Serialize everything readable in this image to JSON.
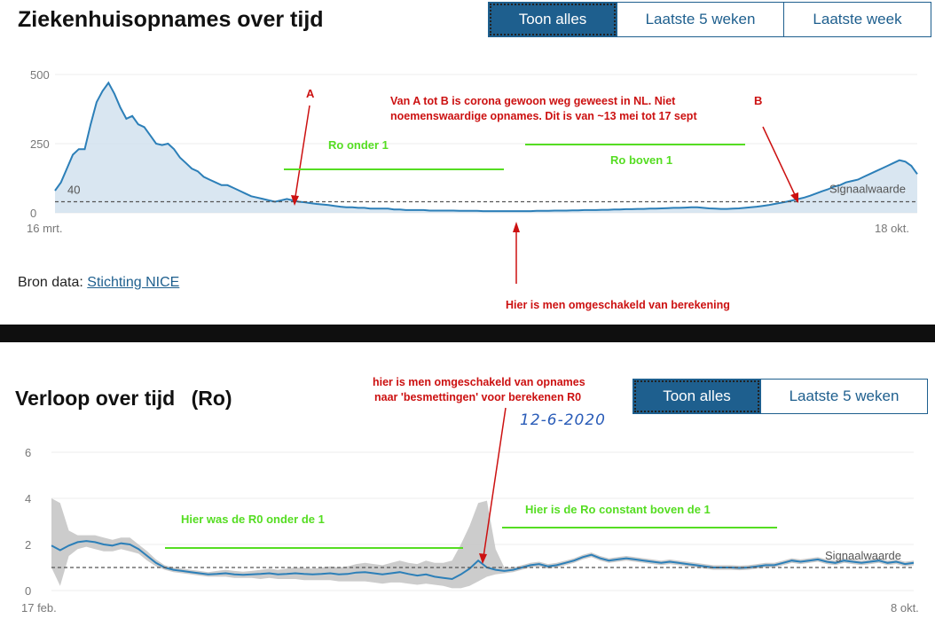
{
  "top": {
    "title": "Ziekenhuisopnames over tijd",
    "buttons": [
      "Toon alles",
      "Laatste 5 weken",
      "Laatste week"
    ],
    "source_label": "Bron data:",
    "source_link": "Stichting NICE"
  },
  "bottom": {
    "title": "Verloop over tijd",
    "title_suffix": "(Ro)",
    "buttons": [
      "Toon alles",
      "Laatste 5 weken"
    ],
    "handwritten_date": "12-6-2020"
  },
  "colors": {
    "accent": "#1e5f8e",
    "line": "#2c7fb8",
    "area": "#cfe0ee",
    "band": "#c6c6c6",
    "annotation_red": "#cc1111",
    "annotation_green": "#55dd22"
  },
  "chart_data": [
    {
      "type": "area",
      "x_ticks": [
        "16 mrt.",
        "18 okt."
      ],
      "y_ticks": [
        "0",
        "250",
        "500"
      ],
      "ylim": [
        0,
        520
      ],
      "threshold": 40,
      "threshold_label": "Signaalwaarde",
      "threshold_value_label": "40",
      "series": [
        {
          "values": [
            80,
            110,
            160,
            210,
            230,
            230,
            320,
            400,
            440,
            470,
            430,
            380,
            340,
            350,
            320,
            310,
            280,
            250,
            245,
            250,
            230,
            200,
            180,
            160,
            150,
            130,
            120,
            110,
            100,
            100,
            90,
            80,
            70,
            60,
            55,
            50,
            45,
            40,
            45,
            50,
            45,
            40,
            38,
            35,
            32,
            30,
            28,
            25,
            22,
            20,
            20,
            18,
            18,
            15,
            15,
            15,
            15,
            12,
            12,
            10,
            10,
            10,
            10,
            8,
            8,
            8,
            8,
            8,
            7,
            7,
            7,
            7,
            6,
            6,
            6,
            6,
            6,
            6,
            6,
            6,
            6,
            7,
            7,
            7,
            8,
            8,
            8,
            9,
            9,
            10,
            10,
            10,
            11,
            11,
            12,
            12,
            13,
            13,
            14,
            14,
            15,
            15,
            16,
            17,
            18,
            18,
            19,
            20,
            20,
            18,
            16,
            15,
            14,
            14,
            15,
            16,
            18,
            20,
            22,
            25,
            28,
            32,
            36,
            40,
            45,
            50,
            55,
            62,
            70,
            78,
            85,
            95,
            100,
            110,
            115,
            120,
            130,
            140,
            150,
            160,
            170,
            180,
            190,
            185,
            170,
            140
          ]
        }
      ],
      "annotations": {
        "label_a": "A",
        "label_b": "B",
        "text_ab_line1": "Van A tot B is corona gewoon weg geweest in NL. Niet",
        "text_ab_line2": "noemenswaardige opnames. Dit is van   ~13 mei tot 17 sept",
        "ro_under": "Ro onder 1",
        "ro_above": "Ro boven 1",
        "switch_note": "Hier is men omgeschakeld van berekening"
      }
    },
    {
      "type": "line",
      "x_ticks": [
        "17 feb.",
        "8 okt."
      ],
      "y_ticks": [
        "0",
        "2",
        "4",
        "6"
      ],
      "ylim": [
        0,
        6.2
      ],
      "threshold": 1,
      "threshold_label": "Signaalwaarde",
      "series": [
        {
          "values": [
            1.95,
            1.75,
            1.95,
            2.1,
            2.15,
            2.1,
            2.0,
            1.95,
            2.05,
            2.0,
            1.8,
            1.5,
            1.2,
            1.0,
            0.9,
            0.85,
            0.8,
            0.75,
            0.7,
            0.72,
            0.75,
            0.7,
            0.68,
            0.7,
            0.72,
            0.75,
            0.7,
            0.72,
            0.75,
            0.72,
            0.7,
            0.72,
            0.75,
            0.7,
            0.72,
            0.78,
            0.8,
            0.75,
            0.7,
            0.75,
            0.8,
            0.72,
            0.65,
            0.7,
            0.6,
            0.55,
            0.5,
            0.7,
            0.95,
            1.3,
            1.0,
            0.9,
            0.85,
            0.9,
            1.0,
            1.1,
            1.15,
            1.05,
            1.1,
            1.2,
            1.3,
            1.45,
            1.55,
            1.4,
            1.3,
            1.35,
            1.4,
            1.35,
            1.3,
            1.25,
            1.2,
            1.25,
            1.2,
            1.15,
            1.1,
            1.05,
            1.0,
            1.0,
            1.0,
            0.98,
            1.0,
            1.05,
            1.1,
            1.1,
            1.2,
            1.3,
            1.25,
            1.3,
            1.35,
            1.25,
            1.2,
            1.3,
            1.25,
            1.2,
            1.25,
            1.3,
            1.2,
            1.25,
            1.15,
            1.2
          ]
        }
      ],
      "band_lower": [
        1.0,
        0.2,
        1.5,
        1.8,
        1.9,
        1.8,
        1.7,
        1.7,
        1.8,
        1.7,
        1.6,
        1.3,
        1.05,
        0.9,
        0.8,
        0.75,
        0.7,
        0.65,
        0.6,
        0.6,
        0.6,
        0.55,
        0.55,
        0.55,
        0.5,
        0.55,
        0.5,
        0.5,
        0.5,
        0.45,
        0.45,
        0.45,
        0.45,
        0.4,
        0.4,
        0.4,
        0.4,
        0.35,
        0.3,
        0.35,
        0.35,
        0.3,
        0.25,
        0.3,
        0.25,
        0.2,
        0.1,
        0.1,
        0.2,
        0.4,
        0.6,
        0.7,
        0.75,
        0.8,
        0.9,
        1.0,
        1.05,
        0.95,
        1.0,
        1.1,
        1.2,
        1.35,
        1.45,
        1.3,
        1.2,
        1.25,
        1.3,
        1.25,
        1.2,
        1.15,
        1.1,
        1.15,
        1.1,
        1.05,
        1.0,
        0.95,
        0.9,
        0.9,
        0.9,
        0.88,
        0.9,
        0.95,
        1.0,
        1.0,
        1.1,
        1.2,
        1.15,
        1.2,
        1.25,
        1.15,
        1.1,
        1.2,
        1.15,
        1.1,
        1.15,
        1.2,
        1.1,
        1.15,
        1.05,
        1.1
      ],
      "band_upper": [
        4.0,
        3.8,
        2.6,
        2.4,
        2.4,
        2.4,
        2.3,
        2.2,
        2.3,
        2.3,
        2.0,
        1.7,
        1.35,
        1.1,
        1.0,
        0.95,
        0.9,
        0.85,
        0.8,
        0.85,
        0.9,
        0.85,
        0.82,
        0.85,
        0.9,
        0.95,
        0.9,
        0.95,
        1.0,
        0.98,
        0.95,
        1.0,
        1.05,
        1.0,
        1.05,
        1.15,
        1.2,
        1.15,
        1.1,
        1.2,
        1.3,
        1.2,
        1.15,
        1.3,
        1.2,
        1.2,
        1.3,
        2.0,
        2.8,
        3.8,
        3.9,
        1.8,
        1.0,
        1.0,
        1.1,
        1.2,
        1.25,
        1.15,
        1.2,
        1.3,
        1.4,
        1.55,
        1.65,
        1.5,
        1.4,
        1.45,
        1.5,
        1.45,
        1.4,
        1.35,
        1.3,
        1.35,
        1.3,
        1.25,
        1.2,
        1.15,
        1.1,
        1.1,
        1.1,
        1.08,
        1.1,
        1.15,
        1.2,
        1.2,
        1.3,
        1.4,
        1.35,
        1.4,
        1.45,
        1.35,
        1.3,
        1.4,
        1.35,
        1.3,
        1.35,
        1.4,
        1.3,
        1.35,
        1.25,
        1.3
      ],
      "annotations": {
        "switch_line1": "hier is men omgeschakeld van opnames",
        "switch_line2": "naar 'besmettingen' voor berekenen R0",
        "r0_under": "Hier was de R0 onder de 1",
        "ro_above": "Hier is de Ro constant boven de 1"
      }
    }
  ]
}
